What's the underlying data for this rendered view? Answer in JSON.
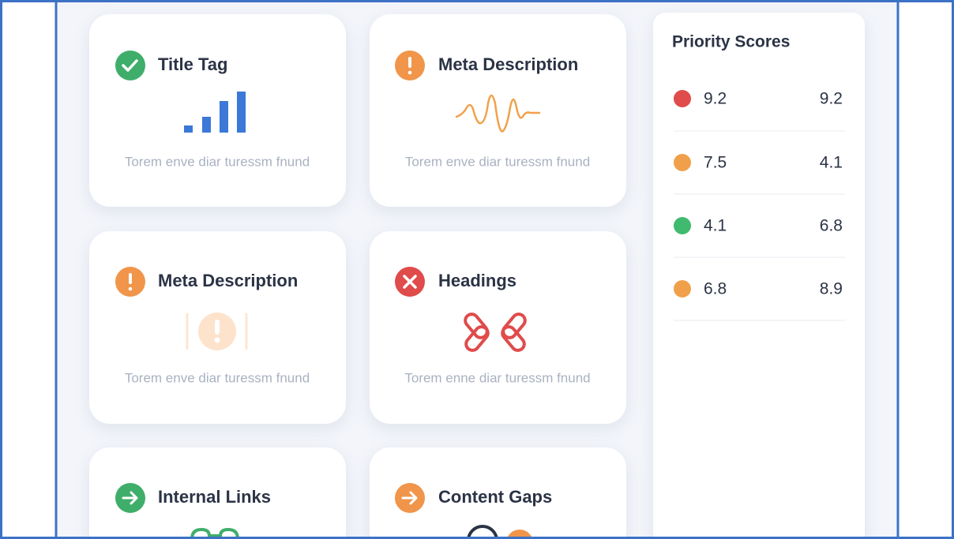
{
  "cards": [
    {
      "title": "Title Tag",
      "description": "Torem enve diar turessm fnund"
    },
    {
      "title": "Meta Description",
      "description": "Torem enve diar turessm fnund"
    },
    {
      "title": "Meta Description",
      "description": "Torem enve diar turessm fnund"
    },
    {
      "title": "Headings",
      "description": "Torem enne diar turessm fnund"
    },
    {
      "title": "Internal Links"
    },
    {
      "title": "Content Gaps"
    }
  ],
  "scores": {
    "title": "Priority Scores",
    "rows": [
      {
        "left": 9.2,
        "right": 9.2
      },
      {
        "left": 7.5,
        "right": 4.1
      },
      {
        "left": 4.1,
        "right": 6.8
      },
      {
        "left": 6.8,
        "right": 8.9
      }
    ]
  }
}
